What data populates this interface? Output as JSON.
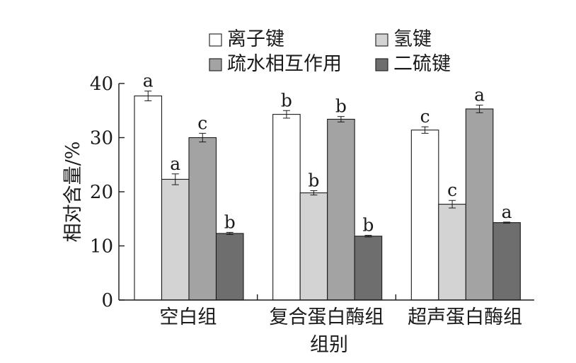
{
  "chart_data": {
    "type": "bar",
    "xlabel": "组别",
    "ylabel": "相对含量/%",
    "ylim": [
      0,
      40
    ],
    "yticks": [
      0,
      10,
      20,
      30,
      40
    ],
    "categories": [
      "空白组",
      "复合蛋白酶组",
      "超声蛋白酶组"
    ],
    "legend_position": "top",
    "series": [
      {
        "name": "离子键",
        "color": "#ffffff",
        "values": [
          37.7,
          34.3,
          31.4
        ],
        "errors": [
          0.9,
          0.7,
          0.6
        ],
        "labels": [
          "a",
          "b",
          "c"
        ]
      },
      {
        "name": "氢键",
        "color": "#d3d3d3",
        "values": [
          22.3,
          19.8,
          17.7
        ],
        "errors": [
          1.0,
          0.4,
          0.7
        ],
        "labels": [
          "a",
          "b",
          "c"
        ]
      },
      {
        "name": "疏水相互作用",
        "color": "#a3a3a3",
        "values": [
          30.0,
          33.4,
          35.3
        ],
        "errors": [
          0.8,
          0.5,
          0.7
        ],
        "labels": [
          "c",
          "b",
          "a"
        ]
      },
      {
        "name": "二硫键",
        "color": "#6e6e6e",
        "values": [
          12.3,
          11.8,
          14.3
        ],
        "errors": [
          0.2,
          0.15,
          0.1
        ],
        "labels": [
          "b",
          "b",
          "a"
        ]
      }
    ]
  }
}
